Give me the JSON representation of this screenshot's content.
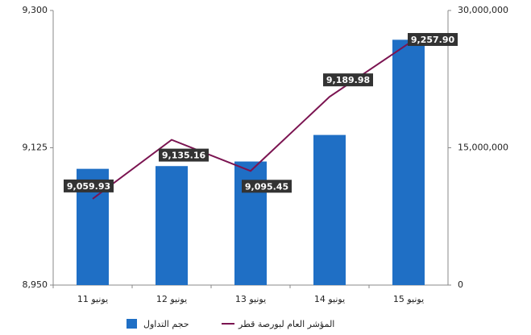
{
  "chart_data": {
    "type": "combo",
    "categories": [
      "11 يونيو",
      "12 يونيو",
      "13 يونيو",
      "14 يونيو",
      "15 يونيو"
    ],
    "series": [
      {
        "name": "حجم التداول",
        "type": "bar",
        "axis": "y2",
        "color": "#1f6fc5",
        "values": [
          12700000,
          13000000,
          13500000,
          16400000,
          26800000
        ]
      },
      {
        "name": "المؤشر العام لبورصة قطر",
        "type": "line",
        "axis": "y",
        "color": "#7b1451",
        "values": [
          9059.93,
          9135.16,
          9095.45,
          9189.98,
          9257.9
        ],
        "value_labels": [
          "9,059.93",
          "9,135.16",
          "9,095.45",
          "9,189.98",
          "9,257.90"
        ]
      }
    ],
    "ylim": [
      8950,
      9300
    ],
    "yticks": [
      {
        "value": 8950,
        "label": "8,950"
      },
      {
        "value": 9125,
        "label": "9,125"
      },
      {
        "value": 9300,
        "label": "9,300"
      }
    ],
    "y2lim": [
      0,
      30000000
    ],
    "y2ticks": [
      0,
      {
        "value": 15000000,
        "label": "15,000,000"
      },
      {
        "value": 30000000,
        "label": "30,000,000"
      }
    ],
    "grid": false
  }
}
